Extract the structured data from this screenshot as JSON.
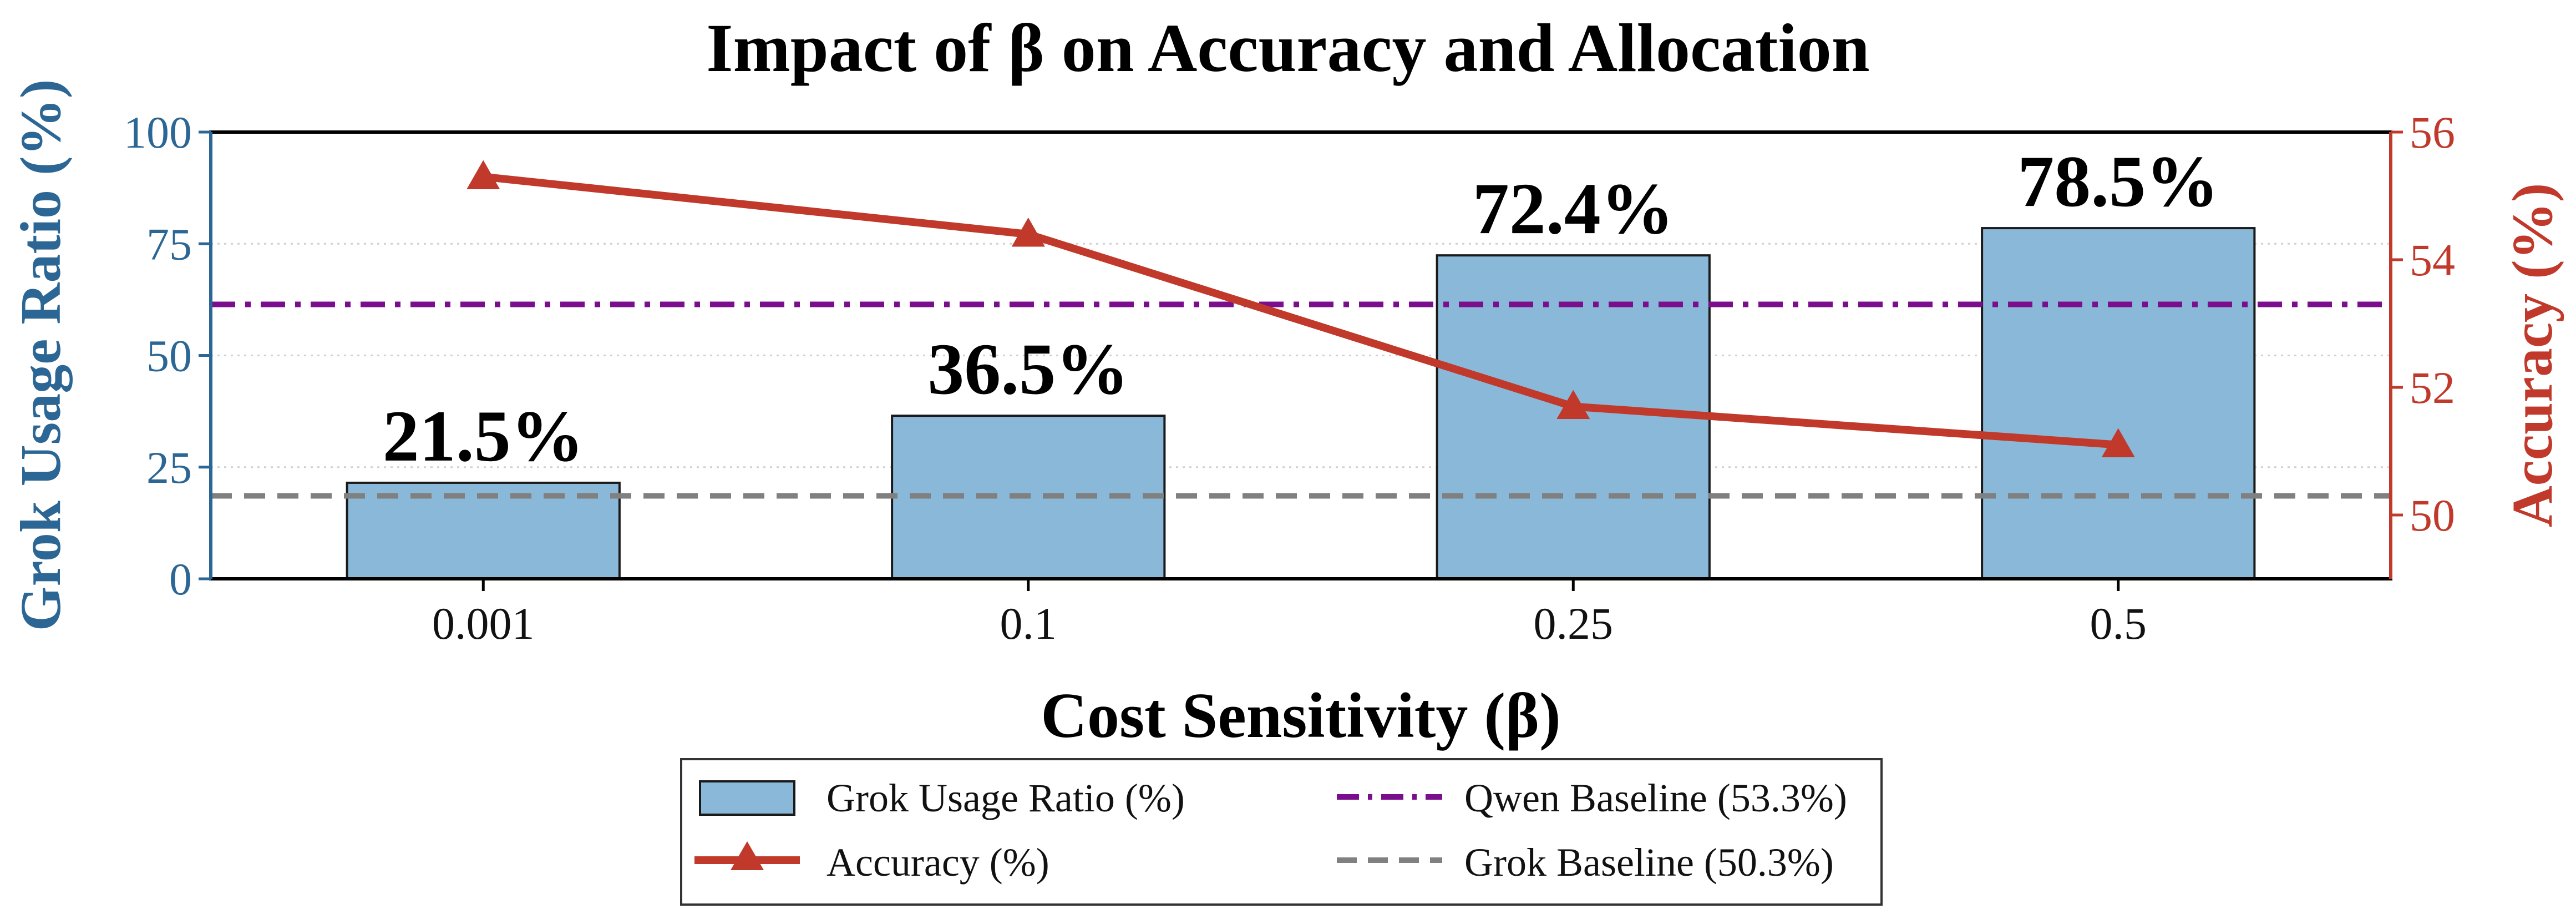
{
  "chart_data": {
    "type": "bar",
    "title": "Impact of β on Accuracy and Allocation",
    "xlabel": "Cost Sensitivity (β)",
    "categories": [
      "0.001",
      "0.1",
      "0.25",
      "0.5"
    ],
    "ylabel_left": "Grok Usage Ratio (%)",
    "ylabel_right": "Accuracy (%)",
    "ylim_left": [
      0,
      100
    ],
    "yticks_left": [
      "0",
      "25",
      "50",
      "75",
      "100"
    ],
    "ylim_right": [
      49.0,
      56.0
    ],
    "yticks_right": [
      "50",
      "52",
      "54",
      "56"
    ],
    "grid": "horizontal dotted",
    "legend_position": "bottom-center",
    "series": [
      {
        "name": "Grok Usage Ratio (%)",
        "kind": "bar",
        "axis": "left",
        "values": [
          21.5,
          36.5,
          72.4,
          78.5
        ],
        "labels": [
          "21.5%",
          "36.5%",
          "72.4%",
          "78.5%"
        ],
        "color": "#8ab8d9",
        "edge_color": "#1a1a1a"
      },
      {
        "name": "Accuracy (%)",
        "kind": "line",
        "marker": "triangle",
        "axis": "right",
        "values": [
          55.3,
          54.4,
          51.7,
          51.1
        ],
        "color": "#c0392b"
      },
      {
        "name": "Qwen Baseline (53.3%)",
        "kind": "hline",
        "style": "dashdot",
        "axis": "right",
        "value": 53.3,
        "color": "#7a0e8c"
      },
      {
        "name": "Grok Baseline (50.3%)",
        "kind": "hline",
        "style": "dashed",
        "axis": "right",
        "value": 50.3,
        "color": "#808080"
      }
    ],
    "colors": {
      "left_axis": "#2c6694",
      "right_axis": "#c0392b"
    }
  }
}
